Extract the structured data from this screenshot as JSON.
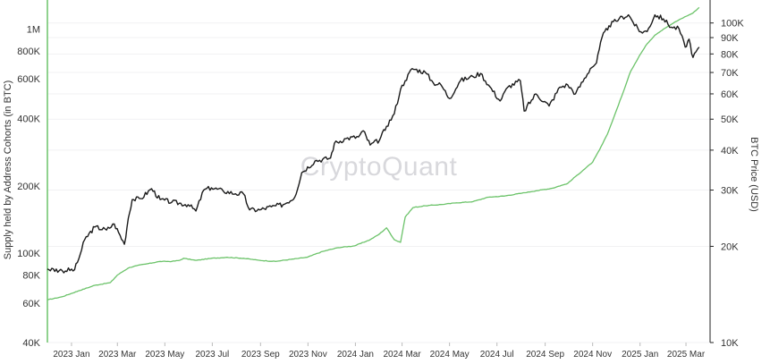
{
  "chart_data": {
    "type": "line",
    "watermark": "CryptoQuant",
    "ylabel_left": "Supply held by Address Cohorts (in BTC)",
    "ylabel_right": "BTC Price (USD)",
    "y_left_scale": "log",
    "y_right_scale": "log",
    "y_left_range": [
      40000,
      1300000
    ],
    "y_right_range": [
      10000,
      115000
    ],
    "y_left_ticks": [
      {
        "value": 40000,
        "label": "40K"
      },
      {
        "value": 60000,
        "label": "60K"
      },
      {
        "value": 80000,
        "label": "80K"
      },
      {
        "value": 100000,
        "label": "100K"
      },
      {
        "value": 200000,
        "label": "200K"
      },
      {
        "value": 400000,
        "label": "400K"
      },
      {
        "value": 600000,
        "label": "600K"
      },
      {
        "value": 800000,
        "label": "800K"
      },
      {
        "value": 1000000,
        "label": "1M"
      }
    ],
    "y_right_ticks": [
      {
        "value": 10000,
        "label": "10K"
      },
      {
        "value": 20000,
        "label": "20K"
      },
      {
        "value": 30000,
        "label": "30K"
      },
      {
        "value": 40000,
        "label": "40K"
      },
      {
        "value": 50000,
        "label": "50K"
      },
      {
        "value": 60000,
        "label": "60K"
      },
      {
        "value": 70000,
        "label": "70K"
      },
      {
        "value": 80000,
        "label": "80K"
      },
      {
        "value": 90000,
        "label": "90K"
      },
      {
        "value": 100000,
        "label": "100K"
      }
    ],
    "x_range": [
      "2022-12-01",
      "2025-04-01"
    ],
    "x_ticks": [
      {
        "date": "2023-01-01",
        "label": "2023 Jan"
      },
      {
        "date": "2023-03-01",
        "label": "2023 Mar"
      },
      {
        "date": "2023-05-01",
        "label": "2023 May"
      },
      {
        "date": "2023-07-01",
        "label": "2023 Jul"
      },
      {
        "date": "2023-09-01",
        "label": "2023 Sep"
      },
      {
        "date": "2023-11-01",
        "label": "2023 Nov"
      },
      {
        "date": "2024-01-01",
        "label": "2024 Jan"
      },
      {
        "date": "2024-03-01",
        "label": "2024 Mar"
      },
      {
        "date": "2024-05-01",
        "label": "2024 May"
      },
      {
        "date": "2024-07-01",
        "label": "2024 Jul"
      },
      {
        "date": "2024-09-01",
        "label": "2024 Sep"
      },
      {
        "date": "2024-11-01",
        "label": "2024 Nov"
      },
      {
        "date": "2025-01-01",
        "label": "2025 Jan"
      },
      {
        "date": "2025-03-01",
        "label": "2025 Mar"
      }
    ],
    "series": [
      {
        "axis": "left",
        "color": "#6cc36a",
        "x": [
          "2022-12-01",
          "2022-12-20",
          "2023-01-10",
          "2023-01-31",
          "2023-02-20",
          "2023-03-01",
          "2023-03-15",
          "2023-03-25",
          "2023-04-10",
          "2023-04-25",
          "2023-05-10",
          "2023-05-20",
          "2023-05-25",
          "2023-06-10",
          "2023-06-30",
          "2023-07-20",
          "2023-08-10",
          "2023-08-31",
          "2023-09-20",
          "2023-10-10",
          "2023-10-31",
          "2023-11-20",
          "2023-12-10",
          "2023-12-31",
          "2024-01-20",
          "2024-02-01",
          "2024-02-10",
          "2024-02-20",
          "2024-02-28",
          "2024-03-05",
          "2024-03-15",
          "2024-03-31",
          "2024-04-20",
          "2024-05-10",
          "2024-05-31",
          "2024-06-20",
          "2024-07-10",
          "2024-07-31",
          "2024-08-20",
          "2024-09-10",
          "2024-09-30",
          "2024-10-10",
          "2024-10-20",
          "2024-11-01",
          "2024-11-10",
          "2024-11-20",
          "2024-11-30",
          "2024-12-10",
          "2024-12-20",
          "2024-12-31",
          "2025-01-10",
          "2025-01-20",
          "2025-01-31",
          "2025-02-10",
          "2025-02-20",
          "2025-03-01",
          "2025-03-10",
          "2025-03-18"
        ],
        "values": [
          62000,
          64000,
          68000,
          72000,
          74000,
          80000,
          86000,
          88000,
          90000,
          92000,
          92000,
          93000,
          95000,
          93000,
          95000,
          96000,
          95000,
          93000,
          92000,
          94000,
          96000,
          102000,
          106000,
          108000,
          115000,
          122000,
          130000,
          115000,
          112000,
          145000,
          160000,
          163000,
          165000,
          168000,
          170000,
          178000,
          180000,
          185000,
          190000,
          195000,
          205000,
          220000,
          235000,
          255000,
          290000,
          340000,
          420000,
          520000,
          650000,
          760000,
          860000,
          940000,
          1000000,
          1050000,
          1100000,
          1140000,
          1180000,
          1250000
        ]
      },
      {
        "axis": "right",
        "color": "#1a1a1a",
        "x": [
          "2022-12-01",
          "2022-12-20",
          "2023-01-05",
          "2023-01-12",
          "2023-01-18",
          "2023-01-31",
          "2023-02-15",
          "2023-02-25",
          "2023-03-10",
          "2023-03-15",
          "2023-03-20",
          "2023-03-31",
          "2023-04-14",
          "2023-04-25",
          "2023-05-10",
          "2023-05-31",
          "2023-06-10",
          "2023-06-20",
          "2023-06-30",
          "2023-07-15",
          "2023-07-31",
          "2023-08-10",
          "2023-08-18",
          "2023-08-31",
          "2023-09-15",
          "2023-09-30",
          "2023-10-15",
          "2023-10-24",
          "2023-11-10",
          "2023-11-30",
          "2023-12-05",
          "2023-12-20",
          "2024-01-05",
          "2024-01-11",
          "2024-01-20",
          "2024-02-01",
          "2024-02-10",
          "2024-02-20",
          "2024-02-28",
          "2024-03-05",
          "2024-03-14",
          "2024-03-31",
          "2024-04-10",
          "2024-04-20",
          "2024-05-01",
          "2024-05-15",
          "2024-05-31",
          "2024-06-10",
          "2024-06-20",
          "2024-07-05",
          "2024-07-15",
          "2024-07-31",
          "2024-08-05",
          "2024-08-20",
          "2024-09-06",
          "2024-09-20",
          "2024-09-30",
          "2024-10-10",
          "2024-10-29",
          "2024-11-06",
          "2024-11-13",
          "2024-11-22",
          "2024-12-05",
          "2024-12-17",
          "2024-12-31",
          "2025-01-10",
          "2025-01-20",
          "2025-01-31",
          "2025-02-10",
          "2025-02-20",
          "2025-02-28",
          "2025-03-05",
          "2025-03-10",
          "2025-03-18"
        ],
        "values": [
          17000,
          16800,
          16900,
          18800,
          21000,
          23000,
          22500,
          23500,
          20300,
          24500,
          28000,
          28200,
          30300,
          28000,
          27500,
          27000,
          25800,
          30000,
          30500,
          29800,
          29200,
          29200,
          26000,
          26000,
          26600,
          27000,
          28500,
          34000,
          37000,
          37800,
          42000,
          43500,
          44000,
          46000,
          41500,
          43000,
          47500,
          52000,
          62000,
          66000,
          72000,
          70000,
          65000,
          64000,
          58000,
          66000,
          68000,
          69500,
          64000,
          57000,
          63000,
          66000,
          53000,
          60000,
          55000,
          63000,
          64000,
          60000,
          72000,
          75000,
          90000,
          98000,
          103000,
          106000,
          94000,
          94000,
          106000,
          103000,
          97000,
          96000,
          84000,
          89000,
          78000,
          84000
        ]
      }
    ]
  }
}
